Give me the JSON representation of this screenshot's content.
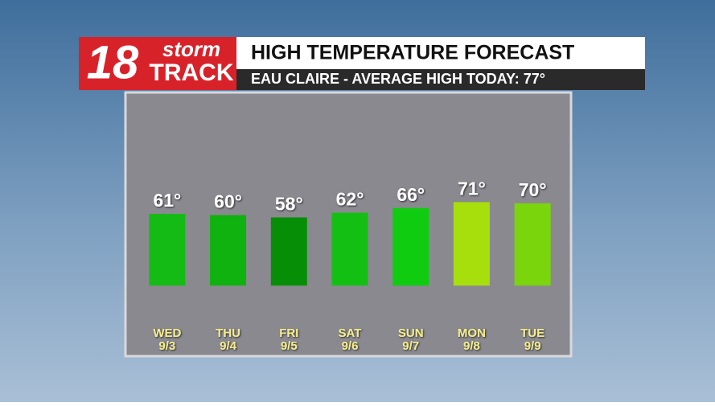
{
  "logo": {
    "number": "18",
    "top": "storm",
    "bottom": "TRACK"
  },
  "chart_data": {
    "type": "bar",
    "title": "HIGH TEMPERATURE FORECAST",
    "subtitle": "EAU CLAIRE - AVERAGE HIGH TODAY: 77°",
    "categories": [
      "WED",
      "THU",
      "FRI",
      "SAT",
      "SUN",
      "MON",
      "TUE"
    ],
    "category_dates": [
      "9/3",
      "9/4",
      "9/5",
      "9/6",
      "9/7",
      "9/8",
      "9/9"
    ],
    "values": [
      61,
      60,
      58,
      62,
      66,
      71,
      70
    ],
    "value_labels": [
      "61°",
      "60°",
      "58°",
      "62°",
      "66°",
      "71°",
      "70°"
    ],
    "colors": [
      "#14bb14",
      "#0fb20f",
      "#078e07",
      "#14bf14",
      "#10cc10",
      "#a6df0c",
      "#7ad50c"
    ],
    "ylim": [
      -34,
      100
    ]
  }
}
